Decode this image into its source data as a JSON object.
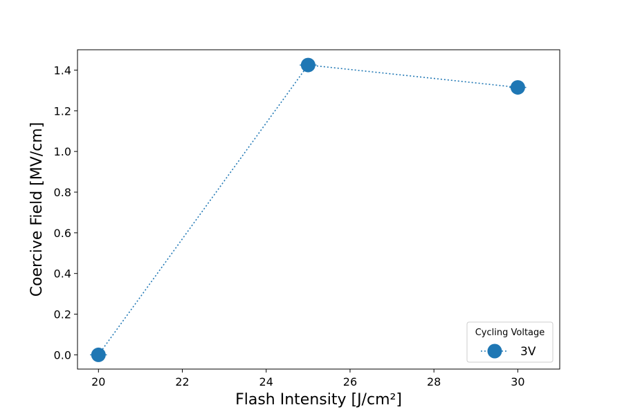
{
  "chart_data": {
    "type": "line",
    "title": "",
    "xlabel": "Flash Intensity [J/cm²]",
    "ylabel": "Coercive Field [MV/cm]",
    "xlim": [
      19.5,
      31.0
    ],
    "ylim": [
      -0.07,
      1.5
    ],
    "x_ticks": [
      20,
      22,
      24,
      26,
      28,
      30
    ],
    "x_tick_labels": [
      "20",
      "22",
      "24",
      "26",
      "28",
      "30"
    ],
    "y_ticks": [
      0.0,
      0.2,
      0.4,
      0.6,
      0.8,
      1.0,
      1.2,
      1.4
    ],
    "y_tick_labels": [
      "0.0",
      "0.2",
      "0.4",
      "0.6",
      "0.8",
      "1.0",
      "1.2",
      "1.4"
    ],
    "grid": false,
    "legend": {
      "title": "Cycling Voltage",
      "placement": "lower-right"
    },
    "series": [
      {
        "name": "3V",
        "color": "#1f77b4",
        "line_style": "dotted",
        "marker": "circle",
        "x": [
          20,
          25,
          30
        ],
        "y": [
          0.0,
          1.425,
          1.315
        ],
        "xerr": [
          0.2,
          0.2,
          0.2
        ]
      }
    ]
  }
}
